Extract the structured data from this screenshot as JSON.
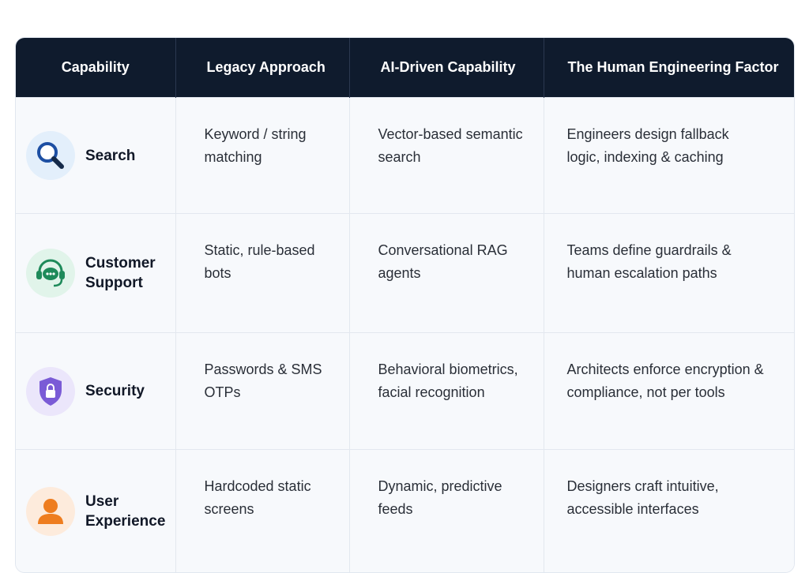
{
  "table": {
    "header": [
      "Capability",
      "Legacy Approach",
      "AI-Driven Capability",
      "The Human Engineering Factor"
    ],
    "rows": [
      [
        "Search",
        "Keyword / string matching",
        "Vector-based semantic search",
        "Engineers design fallback logic, indexing & caching"
      ],
      [
        "Customer Support",
        "Static, rule-based bots",
        "Conversational RAG agents",
        "Teams define guardrails & human escalation paths"
      ],
      [
        "Security",
        "Passwords & SMS OTPs",
        "Behavioral biometrics, facial recognition",
        "Architects enforce encryption & compliance, not per tools"
      ],
      [
        "User Experience",
        "Hardcoded static screens",
        "Dynamic, predictive feeds",
        "Designers craft intuitive, accessible interfaces"
      ]
    ]
  }
}
